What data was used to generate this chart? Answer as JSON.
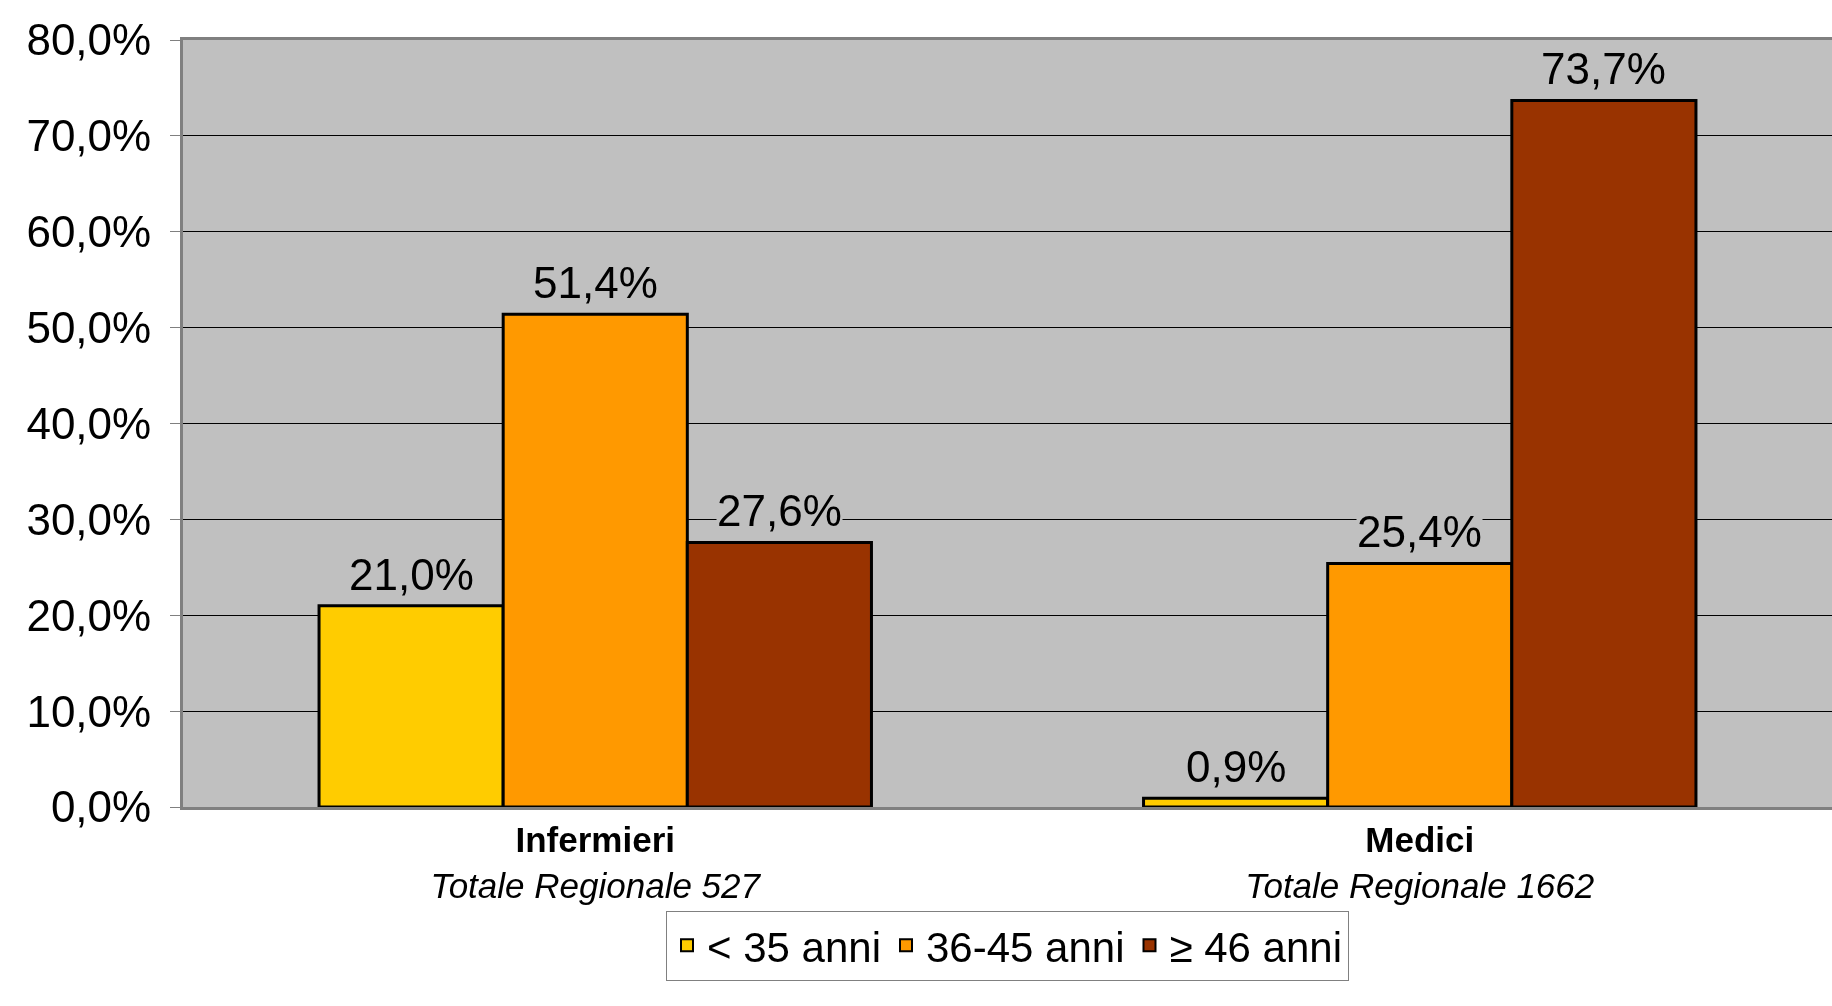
{
  "chart_data": {
    "type": "bar",
    "categories": [
      "Infermieri\nTotale Regionale 527",
      "Medici\nTotale Regionale 1662"
    ],
    "series": [
      {
        "name": "< 35 anni",
        "color": "#ffcc00",
        "values": [
          21.0,
          0.9
        ],
        "value_labels": [
          "21,0%",
          "0,9%"
        ]
      },
      {
        "name": "36-45 anni",
        "color": "#ff9900",
        "values": [
          51.4,
          25.4
        ],
        "value_labels": [
          "51,4%",
          "25,4%"
        ]
      },
      {
        "name": "≥ 46 anni",
        "color": "#993300",
        "values": [
          27.6,
          73.7
        ],
        "value_labels": [
          "27,6%",
          "73,7%"
        ]
      }
    ],
    "ylim": [
      0,
      80
    ],
    "yticks": [
      {
        "value": 0,
        "label": "0,0%"
      },
      {
        "value": 10,
        "label": "10,0%"
      },
      {
        "value": 20,
        "label": "20,0%"
      },
      {
        "value": 30,
        "label": "30,0%"
      },
      {
        "value": 40,
        "label": "40,0%"
      },
      {
        "value": 50,
        "label": "50,0%"
      },
      {
        "value": 60,
        "label": "60,0%"
      },
      {
        "value": 70,
        "label": "70,0%"
      },
      {
        "value": 80,
        "label": "80,0%"
      }
    ],
    "grid": "y",
    "legend": "bottom"
  }
}
